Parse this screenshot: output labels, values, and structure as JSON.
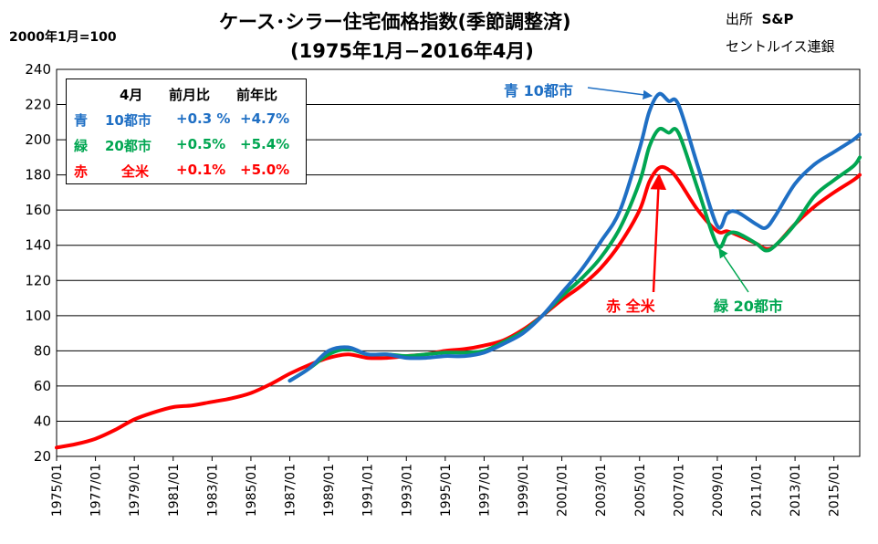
{
  "title_line1": "ケース･シラー住宅価格指数(季節調整済)",
  "title_line2": "(1975年1月−2016年4月)",
  "base_note": "2000年1月=100",
  "source_label": "出所",
  "source_name": "S&P",
  "source_line2": "セントルイス連銀",
  "legend": {
    "header_month": "4月",
    "header_mom": "前月比",
    "header_yoy": "前年比",
    "rows": [
      {
        "color_word": "青",
        "name": "10都市",
        "mom": "+0.3 %",
        "yoy": "+4.7%",
        "color": "#1f6fc4"
      },
      {
        "color_word": "緑",
        "name": "20都市",
        "mom": "+0.5%",
        "yoy": "+5.4%",
        "color": "#00a651"
      },
      {
        "color_word": "赤",
        "name": "全米",
        "mom": "+0.1%",
        "yoy": "+5.0%",
        "color": "#ff0000"
      }
    ]
  },
  "annotations": {
    "blue": "青 10都市",
    "green": "緑 20都市",
    "red": "赤 全米"
  },
  "chart_data": {
    "type": "line",
    "title": "ケース･シラー住宅価格指数(季節調整済)",
    "ylim": [
      20,
      240
    ],
    "yticks": [
      20,
      40,
      60,
      80,
      100,
      120,
      140,
      160,
      180,
      200,
      220,
      240
    ],
    "xlim": [
      1975.0,
      2016.33
    ],
    "xtick_labels": [
      "1975/01",
      "1977/01",
      "1979/01",
      "1981/01",
      "1983/01",
      "1985/01",
      "1987/01",
      "1989/01",
      "1991/01",
      "1993/01",
      "1995/01",
      "1997/01",
      "1999/01",
      "2001/01",
      "2003/01",
      "2005/01",
      "2007/01",
      "2009/01",
      "2011/01",
      "2013/01",
      "2015/01"
    ],
    "grid": true,
    "series": [
      {
        "name": "全米",
        "color": "#ff0000",
        "x": [
          1975,
          1976,
          1977,
          1978,
          1979,
          1980,
          1981,
          1982,
          1983,
          1984,
          1985,
          1986,
          1987,
          1988,
          1989,
          1990,
          1991,
          1992,
          1993,
          1994,
          1995,
          1996,
          1997,
          1998,
          1999,
          2000,
          2001,
          2002,
          2003,
          2004,
          2005,
          2005.5,
          2006,
          2006.5,
          2007,
          2008,
          2009,
          2009.5,
          2010,
          2011,
          2011.5,
          2012,
          2013,
          2014,
          2015,
          2016,
          2016.33
        ],
        "y": [
          25,
          27,
          30,
          35,
          41,
          45,
          48,
          49,
          51,
          53,
          56,
          61,
          67,
          72,
          76,
          78,
          76,
          76,
          77,
          78,
          80,
          81,
          83,
          86,
          92,
          100,
          109,
          117,
          127,
          141,
          160,
          176,
          184,
          183,
          177,
          160,
          148,
          148,
          146,
          141,
          138,
          140,
          152,
          162,
          170,
          177,
          180
        ]
      },
      {
        "name": "20都市",
        "color": "#00a651",
        "x": [
          1987,
          1988,
          1989,
          1990,
          1991,
          1992,
          1993,
          1994,
          1995,
          1996,
          1997,
          1998,
          1999,
          2000,
          2001,
          2002,
          2003,
          2004,
          2005,
          2005.5,
          2006,
          2006.5,
          2007,
          2008,
          2009,
          2009.5,
          2010,
          2011,
          2011.5,
          2012,
          2013,
          2014,
          2015,
          2016,
          2016.33
        ],
        "y": [
          63,
          70,
          78,
          81,
          78,
          78,
          77,
          78,
          79,
          79,
          80,
          85,
          91,
          100,
          111,
          121,
          133,
          150,
          176,
          196,
          206,
          204,
          204,
          172,
          140,
          146,
          147,
          141,
          137,
          140,
          152,
          168,
          177,
          185,
          190
        ]
      },
      {
        "name": "10都市",
        "color": "#1f6fc4",
        "x": [
          1987,
          1988,
          1989,
          1990,
          1991,
          1992,
          1993,
          1994,
          1995,
          1996,
          1997,
          1998,
          1999,
          2000,
          2001,
          2002,
          2003,
          2004,
          2005,
          2005.5,
          2006,
          2006.5,
          2007,
          2008,
          2009,
          2009.5,
          2010,
          2011,
          2011.5,
          2012,
          2013,
          2014,
          2015,
          2016,
          2016.33
        ],
        "y": [
          63,
          70,
          80,
          82,
          78,
          78,
          76,
          76,
          77,
          77,
          79,
          84,
          90,
          100,
          113,
          126,
          142,
          160,
          195,
          216,
          226,
          222,
          220,
          185,
          151,
          158,
          159,
          152,
          150,
          157,
          175,
          186,
          193,
          200,
          203
        ]
      }
    ]
  }
}
